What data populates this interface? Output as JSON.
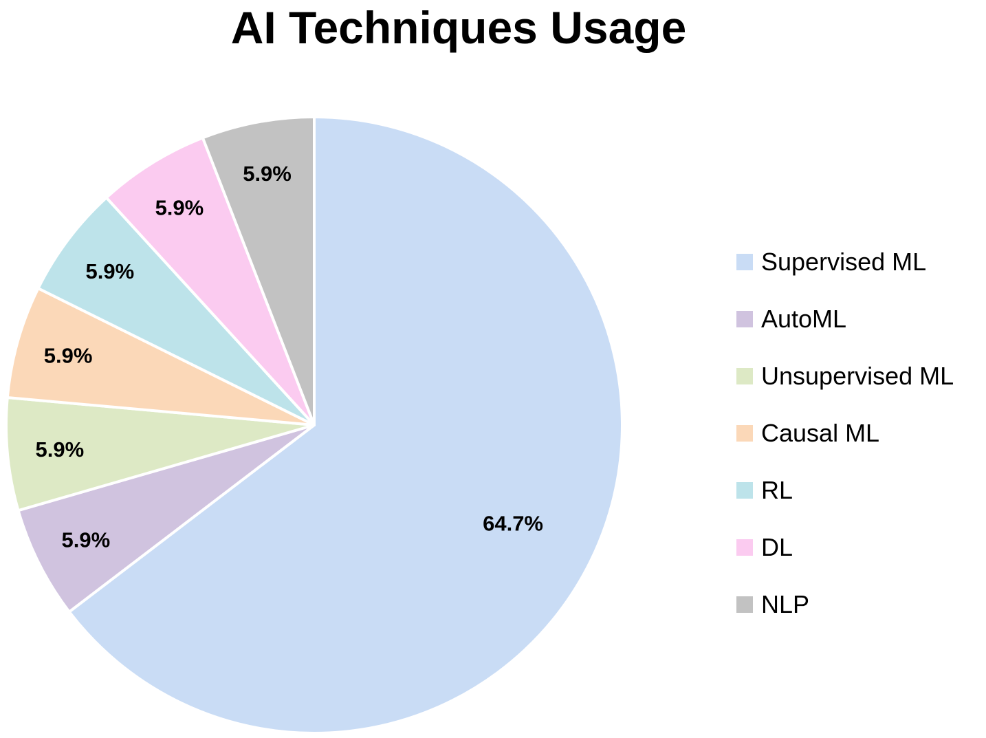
{
  "chart_data": {
    "type": "pie",
    "title": "AI Techniques Usage",
    "categories": [
      "Supervised ML",
      "AutoML",
      "Unsupervised ML",
      "Causal ML",
      "RL",
      "DL",
      "NLP"
    ],
    "values": [
      64.7,
      5.9,
      5.9,
      5.9,
      5.9,
      5.9,
      5.9
    ],
    "data_labels": [
      "64.7%",
      "5.9%",
      "5.9%",
      "5.9%",
      "5.9%",
      "5.9%",
      "5.9%"
    ],
    "colors": [
      "#c9dcf5",
      "#d0c3df",
      "#dde9c5",
      "#fbd8b8",
      "#bde3ea",
      "#fbcbf0",
      "#c2c2c2"
    ],
    "legend": "right"
  }
}
